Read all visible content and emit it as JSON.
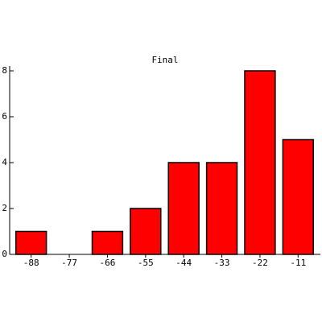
{
  "chart_data": {
    "type": "bar",
    "title": "Final",
    "categories": [
      "-88",
      "-77",
      "-66",
      "-55",
      "-44",
      "-33",
      "-22",
      "-11"
    ],
    "values": [
      1,
      0,
      1,
      2,
      4,
      4,
      8,
      5
    ],
    "color": "#ff0000",
    "ylim": [
      0,
      8
    ],
    "yticks": [
      0,
      2,
      4,
      6,
      8
    ],
    "grid": false
  }
}
